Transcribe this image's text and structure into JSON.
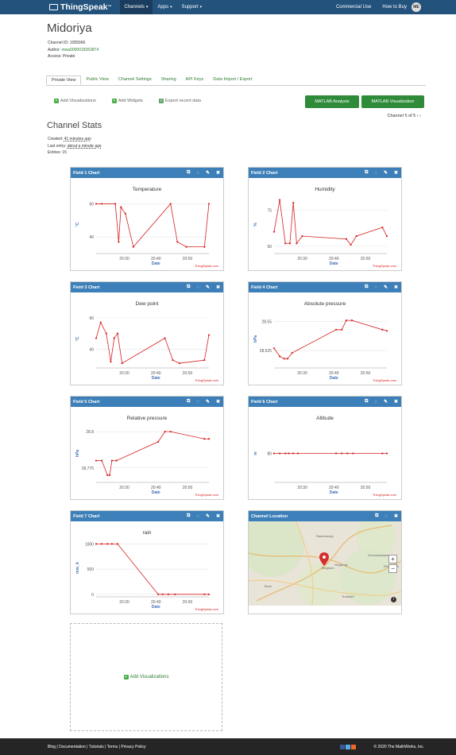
{
  "nav": {
    "brand": "ThingSpeak",
    "tm": "™",
    "channels": "Channels",
    "apps": "Apps",
    "support": "Support",
    "commercial": "Commercial Use",
    "buy": "How to Buy",
    "avatar": "ME"
  },
  "channel": {
    "name": "Midoriya",
    "id_label": "Channel ID:",
    "id": "1055966",
    "author_label": "Author:",
    "author": "mwa0000018353874",
    "access_label": "Access:",
    "access": "Private"
  },
  "tabs": [
    "Private View",
    "Public View",
    "Channel Settings",
    "Sharing",
    "API Keys",
    "Data Import / Export"
  ],
  "actions": {
    "add_vis": "Add Visualizations",
    "add_widgets": "Add Widgets",
    "export": "Export recent data",
    "matlab_analysis": "MATLAB Analysis",
    "matlab_vis": "MATLAB Visualization",
    "pager": "Channel 5 of 5"
  },
  "stats": {
    "title": "Channel Stats",
    "created_label": "Created:",
    "created": "41 minutes ago",
    "last_label": "Last entry:",
    "last": "about a minute ago",
    "entries_label": "Entries:",
    "entries": "15"
  },
  "widgets": [
    {
      "header": "Field 1 Chart"
    },
    {
      "header": "Field 2 Chart"
    },
    {
      "header": "Field 3 Chart"
    },
    {
      "header": "Field 4 Chart"
    },
    {
      "header": "Field 5 Chart"
    },
    {
      "header": "Field 6 Chart"
    },
    {
      "header": "Field 7 Chart"
    },
    {
      "header": "Channel Location"
    }
  ],
  "map_labels": [
    "Ravensburg",
    "Gummersbach",
    "Bergisch",
    "Siegburg",
    "Bonn",
    "Troisdorf",
    "Rheinbach"
  ],
  "add_box": "Add Visualizations",
  "footer": {
    "links": "Blog | Documentation | Tutorials | Terms | Privacy Policy",
    "copy": "© 2020 The MathWorks, Inc."
  },
  "chart_data": [
    {
      "type": "line",
      "title": "Temperature",
      "xlabel": "Date",
      "ylabel": "°C",
      "yticks": [
        "40",
        "60"
      ],
      "xticks": [
        "20:30",
        "20:40",
        "20:50"
      ],
      "ylim": [
        30,
        65
      ],
      "x": [
        0.0,
        0.05,
        0.17,
        0.2,
        0.22,
        0.26,
        0.33,
        0.66,
        0.72,
        0.8,
        0.96,
        1.0
      ],
      "y": [
        60,
        60,
        60,
        37,
        58,
        54,
        34,
        60,
        37,
        34,
        34,
        60
      ],
      "credit": "ThingSpeak.com"
    },
    {
      "type": "line",
      "title": "Humidity",
      "xlabel": "Date",
      "ylabel": "%",
      "yticks": [
        "50",
        "75"
      ],
      "xticks": [
        "20:30",
        "20:40",
        "20:50"
      ],
      "ylim": [
        45,
        85
      ],
      "x": [
        0.0,
        0.05,
        0.1,
        0.14,
        0.17,
        0.2,
        0.25,
        0.64,
        0.68,
        0.73,
        0.96,
        1.0
      ],
      "y": [
        60,
        82,
        52,
        52,
        80,
        52,
        57,
        55,
        51,
        57,
        63,
        57
      ],
      "credit": "ThingSpeak.com"
    },
    {
      "type": "line",
      "title": "Dew point",
      "xlabel": "Date",
      "ylabel": "°C",
      "yticks": [
        "40",
        "60"
      ],
      "xticks": [
        "20:30",
        "20:40",
        "20:50"
      ],
      "ylim": [
        28,
        65
      ],
      "x": [
        0.0,
        0.04,
        0.09,
        0.13,
        0.16,
        0.19,
        0.23,
        0.61,
        0.68,
        0.74,
        0.96,
        1.0
      ],
      "y": [
        47,
        57,
        50,
        32,
        47,
        50,
        31,
        47,
        33,
        31,
        33,
        49
      ],
      "credit": "ThingSpeak.com"
    },
    {
      "type": "line",
      "title": "Absolute pressure",
      "xlabel": "Date",
      "ylabel": "hPa",
      "yticks": [
        "28.525",
        "28.55"
      ],
      "xticks": [
        "20:30",
        "20:40",
        "20:50"
      ],
      "ylim": [
        28.51,
        28.56
      ],
      "x": [
        0.0,
        0.05,
        0.09,
        0.12,
        0.16,
        0.55,
        0.6,
        0.64,
        0.69,
        0.96,
        1.0
      ],
      "y": [
        28.527,
        28.52,
        28.518,
        28.518,
        28.523,
        28.543,
        28.543,
        28.551,
        28.551,
        28.543,
        28.542
      ],
      "credit": "ThingSpeak.com"
    },
    {
      "type": "line",
      "title": "Relative pressure",
      "xlabel": "Date",
      "ylabel": "hPa",
      "yticks": [
        "28.775",
        "28.8"
      ],
      "xticks": [
        "20:30",
        "20:40",
        "20:50"
      ],
      "ylim": [
        28.765,
        28.805
      ],
      "x": [
        0.0,
        0.05,
        0.1,
        0.12,
        0.14,
        0.18,
        0.55,
        0.61,
        0.66,
        0.96,
        1.0
      ],
      "y": [
        28.78,
        28.78,
        28.77,
        28.77,
        28.78,
        28.78,
        28.793,
        28.8,
        28.8,
        28.795,
        28.795
      ],
      "credit": "ThingSpeak.com"
    },
    {
      "type": "line",
      "title": "Altitude",
      "xlabel": "Date",
      "ylabel": "m",
      "yticks": [
        "80"
      ],
      "xticks": [
        "20:30",
        "20:40",
        "20:50"
      ],
      "ylim": [
        75,
        85
      ],
      "x": [
        0.0,
        0.05,
        0.1,
        0.13,
        0.17,
        0.21,
        0.55,
        0.6,
        0.65,
        0.7,
        0.96,
        1.0
      ],
      "y": [
        80,
        80,
        80,
        80,
        80,
        80,
        80,
        80,
        80,
        80,
        80,
        80
      ],
      "credit": "ThingSpeak.com"
    },
    {
      "type": "line",
      "title": "rain",
      "xlabel": "Date",
      "ylabel": "mm_h",
      "yticks": [
        "0",
        "500",
        "1000"
      ],
      "xticks": [
        "20:30",
        "20:40",
        "20:50"
      ],
      "ylim": [
        -50,
        1100
      ],
      "x": [
        0.0,
        0.05,
        0.1,
        0.14,
        0.19,
        0.55,
        0.59,
        0.64,
        0.7,
        0.96,
        1.0
      ],
      "y": [
        1000,
        1000,
        1000,
        1000,
        1000,
        0,
        0,
        0,
        0,
        0,
        0
      ],
      "credit": "ThingSpeak.com"
    }
  ]
}
